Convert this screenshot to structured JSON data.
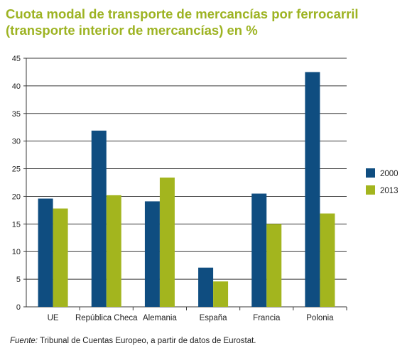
{
  "title": {
    "line1": "Cuota modal de transporte de mercancías por ferrocarril",
    "line2": "(transporte interior de mercancías) en %"
  },
  "source": {
    "prefix": "Fuente:",
    "text": " Tribunal de Cuentas Europeo, a partir de datos de Eurostat."
  },
  "colors": {
    "title": "#9db322",
    "series_2000": "#0f4d80",
    "series_2013": "#a3b51e"
  },
  "chart_data": {
    "type": "bar",
    "categories": [
      "UE",
      "República Checa",
      "Alemania",
      "España",
      "Francia",
      "Polonia"
    ],
    "series": [
      {
        "name": "2000",
        "values": [
          19.6,
          31.9,
          19.1,
          7.1,
          20.5,
          42.5
        ]
      },
      {
        "name": "2013",
        "values": [
          17.8,
          20.2,
          23.4,
          4.6,
          15.0,
          16.9
        ]
      }
    ],
    "ylim": [
      0,
      45
    ],
    "yticks": [
      0,
      5,
      10,
      15,
      20,
      25,
      30,
      35,
      40,
      45
    ],
    "grid": true,
    "legend": "right"
  }
}
